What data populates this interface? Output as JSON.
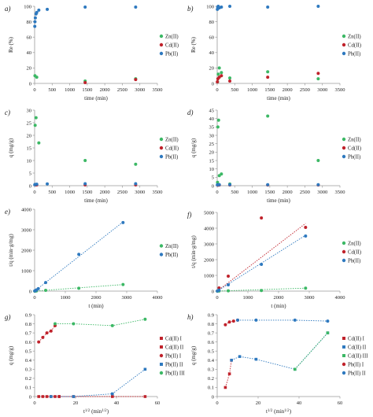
{
  "colors": {
    "zn": "#3cb865",
    "cd": "#c0222b",
    "pb": "#2e79bf",
    "axis": "#9a9a9a",
    "text": "#222222"
  },
  "chart_data": [
    {
      "panel": "a)",
      "type": "scatter",
      "xlabel": "time (min)",
      "ylabel": "Re (%)",
      "xlim": [
        0,
        3500
      ],
      "ylim": [
        0,
        100
      ],
      "xticks": [
        0,
        500,
        1000,
        1500,
        2000,
        2500,
        3000,
        3500
      ],
      "yticks": [
        0,
        20,
        40,
        60,
        80,
        100
      ],
      "legend": "right",
      "series": [
        {
          "name": "Zn(II)",
          "color": "zn",
          "points": [
            [
              10,
              10
            ],
            [
              60,
              8
            ],
            [
              1440,
              3
            ],
            [
              2880,
              6
            ]
          ]
        },
        {
          "name": "Cd(II)",
          "color": "cd",
          "points": [
            [
              1440,
              1
            ],
            [
              2880,
              5
            ]
          ]
        },
        {
          "name": "Pb(II)",
          "color": "pb",
          "points": [
            [
              5,
              74
            ],
            [
              10,
              80
            ],
            [
              20,
              85
            ],
            [
              40,
              90
            ],
            [
              60,
              92
            ],
            [
              120,
              95
            ],
            [
              360,
              96
            ],
            [
              1440,
              99
            ],
            [
              2880,
              99
            ]
          ]
        }
      ]
    },
    {
      "panel": "b)",
      "type": "scatter",
      "xlabel": "time (min)",
      "ylabel": "Re (%)",
      "xlim": [
        0,
        3500
      ],
      "ylim": [
        0,
        100
      ],
      "xticks": [
        0,
        500,
        1000,
        1500,
        2000,
        2500,
        3000,
        3500
      ],
      "yticks": [
        0,
        20,
        40,
        60,
        80,
        100
      ],
      "legend": "right",
      "series": [
        {
          "name": "Zn(II)",
          "color": "zn",
          "points": [
            [
              10,
              2
            ],
            [
              30,
              12
            ],
            [
              60,
              20
            ],
            [
              120,
              14
            ],
            [
              360,
              7
            ],
            [
              1440,
              15
            ],
            [
              2880,
              6
            ]
          ]
        },
        {
          "name": "Cd(II)",
          "color": "cd",
          "points": [
            [
              5,
              2
            ],
            [
              20,
              6
            ],
            [
              60,
              8
            ],
            [
              120,
              10
            ],
            [
              360,
              3
            ],
            [
              1440,
              8
            ],
            [
              2880,
              13
            ]
          ]
        },
        {
          "name": "Pb(II)",
          "color": "pb",
          "points": [
            [
              5,
              96
            ],
            [
              15,
              99
            ],
            [
              30,
              100
            ],
            [
              60,
              98
            ],
            [
              120,
              99
            ],
            [
              360,
              100
            ],
            [
              1440,
              99
            ],
            [
              2880,
              100
            ]
          ]
        }
      ]
    },
    {
      "panel": "c)",
      "type": "scatter",
      "xlabel": "time (min)",
      "ylabel": "q (mg/g)",
      "xlim": [
        0,
        3500
      ],
      "ylim": [
        0,
        30
      ],
      "xticks": [
        0,
        500,
        1000,
        1500,
        2000,
        2500,
        3000,
        3500
      ],
      "yticks": [
        0,
        5,
        10,
        15,
        20,
        25,
        30
      ],
      "legend": "right",
      "series": [
        {
          "name": "Zn(II)",
          "color": "zn",
          "points": [
            [
              15,
              24
            ],
            [
              40,
              27
            ],
            [
              120,
              17
            ],
            [
              1440,
              10
            ],
            [
              2880,
              8.5
            ]
          ]
        },
        {
          "name": "Cd(II)",
          "color": "cd",
          "points": [
            [
              20,
              0.3
            ],
            [
              60,
              0.3
            ],
            [
              1440,
              0.3
            ],
            [
              2880,
              0.3
            ]
          ]
        },
        {
          "name": "Pb(II)",
          "color": "pb",
          "points": [
            [
              5,
              0.4
            ],
            [
              15,
              0.5
            ],
            [
              60,
              0.6
            ],
            [
              360,
              0.7
            ],
            [
              1440,
              0.8
            ],
            [
              2880,
              0.8
            ]
          ]
        }
      ]
    },
    {
      "panel": "d)",
      "type": "scatter",
      "xlabel": "time (min)",
      "ylabel": "q (mg/g)",
      "xlim": [
        0,
        3500
      ],
      "ylim": [
        0,
        45
      ],
      "xticks": [
        0,
        500,
        1000,
        1500,
        2000,
        2500,
        3000,
        3500
      ],
      "yticks": [
        0,
        5,
        10,
        15,
        20,
        25,
        30,
        35,
        40,
        45
      ],
      "legend": "right",
      "series": [
        {
          "name": "Zn(II)",
          "color": "zn",
          "points": [
            [
              10,
              2
            ],
            [
              20,
              35
            ],
            [
              40,
              39
            ],
            [
              60,
              6
            ],
            [
              120,
              7
            ],
            [
              360,
              1
            ],
            [
              1440,
              41.5
            ],
            [
              2880,
              15
            ]
          ]
        },
        {
          "name": "Cd(II)",
          "color": "cd",
          "points": [
            [
              20,
              0.3
            ],
            [
              60,
              0.4
            ],
            [
              360,
              0.4
            ],
            [
              1440,
              0.4
            ],
            [
              2880,
              0.4
            ]
          ]
        },
        {
          "name": "Pb(II)",
          "color": "pb",
          "points": [
            [
              5,
              0.5
            ],
            [
              15,
              0.6
            ],
            [
              60,
              0.6
            ],
            [
              360,
              0.6
            ],
            [
              1440,
              0.6
            ],
            [
              2880,
              0.6
            ]
          ]
        }
      ]
    },
    {
      "panel": "e)",
      "type": "scatter",
      "xlabel": "t (min)",
      "ylabel": "t/q (min·g/mg)",
      "xlim": [
        0,
        4000
      ],
      "ylim": [
        0,
        4000
      ],
      "xticks": [
        0,
        1000,
        2000,
        3000,
        4000
      ],
      "yticks": [
        0,
        1000,
        2000,
        3000,
        4000
      ],
      "legend": "right",
      "series": [
        {
          "name": "Zn(II)",
          "color": "zn",
          "points": [
            [
              5,
              2
            ],
            [
              30,
              4
            ],
            [
              60,
              8
            ],
            [
              360,
              40
            ],
            [
              1440,
              140
            ],
            [
              2880,
              320
            ]
          ],
          "trend": [
            [
              0,
              0
            ],
            [
              2880,
              320
            ]
          ]
        },
        {
          "name": "Pb(II)",
          "color": "pb",
          "points": [
            [
              5,
              10
            ],
            [
              30,
              30
            ],
            [
              60,
              60
            ],
            [
              120,
              120
            ],
            [
              360,
              420
            ],
            [
              1440,
              1800
            ],
            [
              2880,
              3350
            ]
          ],
          "trend": [
            [
              0,
              0
            ],
            [
              2880,
              3380
            ]
          ]
        }
      ]
    },
    {
      "panel": "f)",
      "type": "scatter",
      "xlabel": "t (min)",
      "ylabel": "t/q (min·g/mg)",
      "xlim": [
        0,
        4000
      ],
      "ylim": [
        0,
        5000
      ],
      "xticks": [
        0,
        1000,
        2000,
        3000,
        4000
      ],
      "yticks": [
        0,
        1000,
        2000,
        3000,
        4000,
        5000
      ],
      "legend": "right",
      "series": [
        {
          "name": "Zn(II)",
          "color": "zn",
          "points": [
            [
              5,
              2
            ],
            [
              60,
              8
            ],
            [
              360,
              20
            ],
            [
              1440,
              35
            ],
            [
              2880,
              190
            ]
          ],
          "trend": [
            [
              0,
              0
            ],
            [
              2880,
              190
            ]
          ]
        },
        {
          "name": "Cd(II)",
          "color": "cd",
          "points": [
            [
              60,
              200
            ],
            [
              360,
              950
            ],
            [
              1440,
              4650
            ],
            [
              2880,
              4050
            ]
          ],
          "trend": [
            [
              0,
              0
            ],
            [
              2880,
              4300
            ]
          ]
        },
        {
          "name": "Pb(II)",
          "color": "pb",
          "points": [
            [
              5,
              5
            ],
            [
              60,
              60
            ],
            [
              360,
              400
            ],
            [
              1440,
              1700
            ],
            [
              2880,
              3500
            ]
          ],
          "trend": [
            [
              0,
              0
            ],
            [
              2880,
              3550
            ]
          ]
        }
      ]
    },
    {
      "panel": "g)",
      "type": "line",
      "xlabel": "t",
      "xlabel_sup": "1/2",
      "xlabel_unit": " (min",
      "xlabel_unit_sup": "1/2",
      "xlabel_close": ")",
      "ylabel": "q (mg/g)",
      "xlim": [
        0,
        60
      ],
      "ylim": [
        0,
        0.9
      ],
      "xticks": [
        0,
        20,
        40,
        60
      ],
      "yticks": [
        0,
        0.1,
        0.2,
        0.3,
        0.4,
        0.5,
        0.6,
        0.7,
        0.8,
        0.9
      ],
      "legend": "right",
      "series": [
        {
          "name": "Cd(II) I",
          "color": "cd",
          "marker": "square",
          "points": [
            [
              2,
              0
            ],
            [
              4,
              0
            ],
            [
              6,
              0
            ],
            [
              8,
              0
            ],
            [
              10,
              0
            ],
            [
              12,
              0
            ]
          ]
        },
        {
          "name": "Cd(II) II",
          "color": "cd",
          "marker": "square",
          "points": [
            [
              12,
              0
            ],
            [
              19,
              0
            ],
            [
              38,
              0
            ],
            [
              54,
              0
            ]
          ]
        },
        {
          "name": "Pb(II) I",
          "color": "cd",
          "marker": "circle",
          "points": [
            [
              2,
              0.6
            ],
            [
              4,
              0.65
            ],
            [
              6,
              0.7
            ],
            [
              8,
              0.72
            ],
            [
              10,
              0.78
            ]
          ]
        },
        {
          "name": "Pb(II) II",
          "color": "pb",
          "marker": "square",
          "points": [
            [
              8,
              0
            ],
            [
              19,
              0
            ],
            [
              38,
              0.03
            ],
            [
              54,
              0.3
            ]
          ]
        },
        {
          "name": "Pb(II) III",
          "color": "zn",
          "marker": "circle",
          "points": [
            [
              10,
              0.8
            ],
            [
              19,
              0.8
            ],
            [
              38,
              0.78
            ],
            [
              54,
              0.85
            ]
          ]
        }
      ]
    },
    {
      "panel": "h)",
      "type": "line",
      "xlabel": "t",
      "xlabel_sup": "1/2",
      "xlabel_unit": " (min",
      "xlabel_unit_sup": "1/2",
      "xlabel_close": ")",
      "ylabel": "q (mg/g)",
      "xlim": [
        0,
        60
      ],
      "ylim": [
        0,
        0.9
      ],
      "xticks": [
        0,
        20,
        40,
        60
      ],
      "yticks": [
        0,
        0.1,
        0.2,
        0.3,
        0.4,
        0.5,
        0.6,
        0.7,
        0.8,
        0.9
      ],
      "legend": "right",
      "series": [
        {
          "name": "Cd(II) I",
          "color": "cd",
          "marker": "square",
          "points": [
            [
              4,
              0.1
            ],
            [
              6,
              0.25
            ],
            [
              7,
              0.4
            ]
          ]
        },
        {
          "name": "Cd(II) II",
          "color": "pb",
          "marker": "square",
          "points": [
            [
              7,
              0.4
            ],
            [
              11,
              0.44
            ],
            [
              19,
              0.41
            ],
            [
              38,
              0.3
            ],
            [
              54,
              0.7
            ]
          ]
        },
        {
          "name": "Cd(II) III",
          "color": "zn",
          "marker": "square",
          "points": [
            [
              38,
              0.3
            ],
            [
              54,
              0.7
            ]
          ]
        },
        {
          "name": "Pb(II) I",
          "color": "cd",
          "marker": "circle",
          "points": [
            [
              4,
              0.79
            ],
            [
              6,
              0.82
            ],
            [
              8,
              0.83
            ],
            [
              10,
              0.84
            ]
          ]
        },
        {
          "name": "Pb(II) II",
          "color": "pb",
          "marker": "circle",
          "points": [
            [
              10,
              0.84
            ],
            [
              19,
              0.84
            ],
            [
              38,
              0.84
            ],
            [
              54,
              0.83
            ]
          ]
        }
      ]
    }
  ]
}
